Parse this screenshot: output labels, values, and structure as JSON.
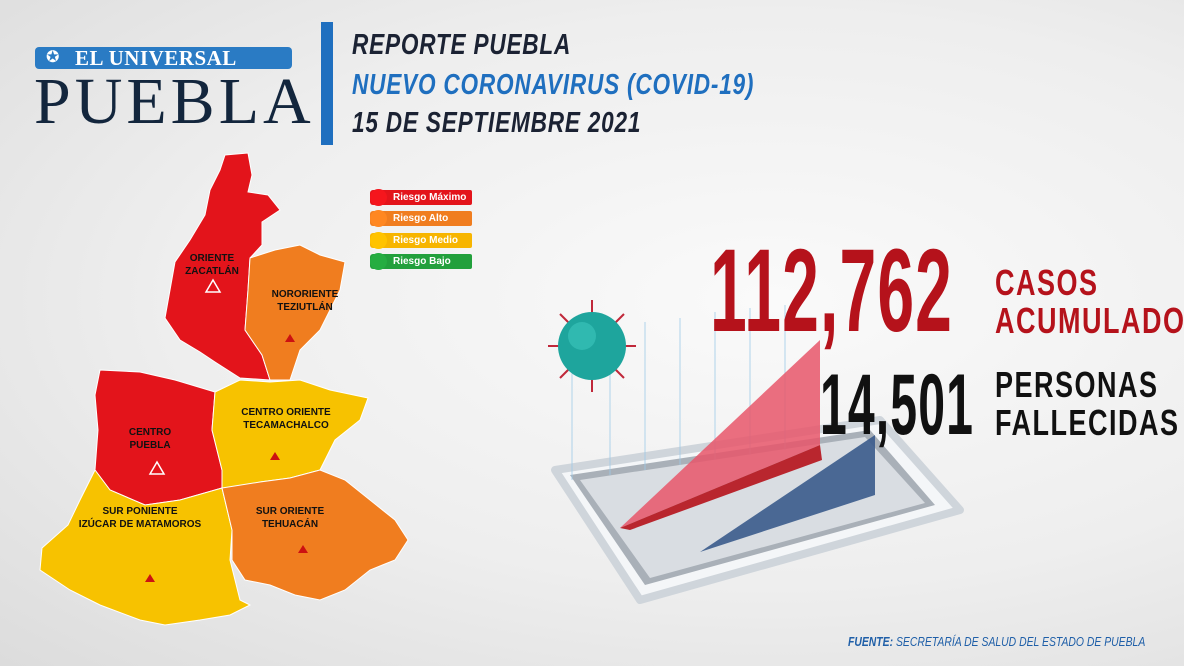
{
  "logo": {
    "top": "EL UNIVERSAL",
    "bottom": "PUEBLA"
  },
  "header": {
    "line1": "REPORTE PUEBLA",
    "line2": "NUEVO CORONAVIRUS (COVID-19)",
    "line3": "15 DE SEPTIEMBRE 2021"
  },
  "legend": [
    {
      "label": "Riesgo Máximo",
      "color": "#e3141b"
    },
    {
      "label": "Riesgo Alto",
      "color": "#f07d1f"
    },
    {
      "label": "Riesgo Medio",
      "color": "#f7b500"
    },
    {
      "label": "Riesgo Bajo",
      "color": "#22a03c"
    }
  ],
  "regions": [
    {
      "name": "ORIENTE",
      "sub": "ZACATLÁN",
      "risk": "Riesgo Máximo",
      "color": "#e3141b"
    },
    {
      "name": "NORORIENTE",
      "sub": "TEZIUTLÁN",
      "risk": "Riesgo Alto",
      "color": "#f07d1f"
    },
    {
      "name": "CENTRO",
      "sub": "PUEBLA",
      "risk": "Riesgo Máximo",
      "color": "#e3141b"
    },
    {
      "name": "CENTRO ORIENTE",
      "sub": "TECAMACHALCO",
      "risk": "Riesgo Medio",
      "color": "#f7c200"
    },
    {
      "name": "SUR PONIENTE",
      "sub": "IZÚCAR DE MATAMOROS",
      "risk": "Riesgo Medio",
      "color": "#f7c200"
    },
    {
      "name": "SUR ORIENTE",
      "sub": "TEHUACÁN",
      "risk": "Riesgo Alto",
      "color": "#f07d1f"
    }
  ],
  "stats": {
    "cases": {
      "value": "112,762",
      "label1": "CASOS",
      "label2": "ACUMULADOS",
      "color": "#b5121b"
    },
    "deaths": {
      "value": "14,501",
      "label1": "PERSONAS",
      "label2": "FALLECIDAS",
      "color": "#111111"
    }
  },
  "footer": {
    "source_label": "FUENTE:",
    "source": "SECRETARÍA DE SALUD DEL ESTADO DE PUEBLA"
  }
}
